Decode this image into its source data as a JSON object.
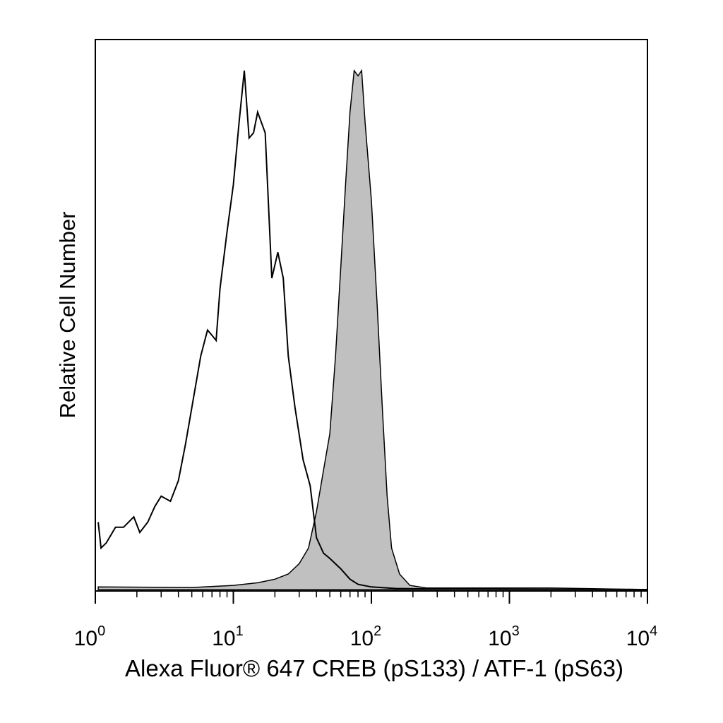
{
  "chart_data": {
    "type": "area",
    "title": "",
    "xlabel": "Alexa Fluor® 647 CREB (pS133) / ATF-1 (pS63)",
    "ylabel": "Relative Cell Number",
    "x_scale": "log",
    "xlim": [
      1,
      10000
    ],
    "ylim": [
      0,
      100
    ],
    "grid": false,
    "legend": "none",
    "x_ticks": [
      {
        "base": "10",
        "exp": "0",
        "value": 1
      },
      {
        "base": "10",
        "exp": "1",
        "value": 10
      },
      {
        "base": "10",
        "exp": "2",
        "value": 100
      },
      {
        "base": "10",
        "exp": "3",
        "value": 1000
      },
      {
        "base": "10",
        "exp": "4",
        "value": 10000
      }
    ],
    "series": [
      {
        "style": "outline",
        "color": "#000000",
        "points": [
          [
            1.05,
            13
          ],
          [
            1.1,
            8
          ],
          [
            1.2,
            9
          ],
          [
            1.4,
            12
          ],
          [
            1.6,
            12
          ],
          [
            1.9,
            14
          ],
          [
            2.1,
            11
          ],
          [
            2.4,
            13
          ],
          [
            2.7,
            16
          ],
          [
            3.0,
            18
          ],
          [
            3.5,
            17
          ],
          [
            4.0,
            21
          ],
          [
            4.5,
            28
          ],
          [
            5.0,
            35
          ],
          [
            5.8,
            45
          ],
          [
            6.5,
            50
          ],
          [
            7.0,
            49
          ],
          [
            7.5,
            48
          ],
          [
            8.0,
            58
          ],
          [
            9.0,
            69
          ],
          [
            10.0,
            78
          ],
          [
            11.0,
            90
          ],
          [
            12.0,
            100
          ],
          [
            13.0,
            87
          ],
          [
            14.0,
            88
          ],
          [
            15.0,
            92
          ],
          [
            17.0,
            88
          ],
          [
            19.0,
            60
          ],
          [
            21.0,
            65
          ],
          [
            23.0,
            60
          ],
          [
            25.0,
            45
          ],
          [
            28.0,
            35
          ],
          [
            32.0,
            25
          ],
          [
            36.0,
            20
          ],
          [
            40.0,
            10
          ],
          [
            45.0,
            7
          ],
          [
            50.0,
            6
          ],
          [
            60.0,
            4
          ],
          [
            70.0,
            2
          ],
          [
            80.0,
            1
          ],
          [
            100.0,
            0.5
          ],
          [
            150.0,
            0.2
          ],
          [
            300.0,
            0.1
          ],
          [
            10000.0,
            0
          ]
        ]
      },
      {
        "style": "filled",
        "color": "#c0c0c0",
        "points": [
          [
            1.05,
            0.5
          ],
          [
            5.0,
            0.4
          ],
          [
            10.0,
            0.8
          ],
          [
            15.0,
            1.3
          ],
          [
            20.0,
            2
          ],
          [
            25.0,
            3
          ],
          [
            30.0,
            5
          ],
          [
            35.0,
            8
          ],
          [
            40.0,
            15
          ],
          [
            45.0,
            23
          ],
          [
            50.0,
            30
          ],
          [
            55.0,
            45
          ],
          [
            60.0,
            62
          ],
          [
            65.0,
            78
          ],
          [
            70.0,
            92
          ],
          [
            75.0,
            100
          ],
          [
            80.0,
            99
          ],
          [
            85.0,
            100
          ],
          [
            90.0,
            90
          ],
          [
            100.0,
            75
          ],
          [
            110.0,
            55
          ],
          [
            120.0,
            35
          ],
          [
            130.0,
            18
          ],
          [
            140.0,
            8
          ],
          [
            160.0,
            3
          ],
          [
            190.0,
            0.8
          ],
          [
            250.0,
            0.3
          ],
          [
            1000.0,
            0.3
          ],
          [
            2000.0,
            0.3
          ],
          [
            10000.0,
            0
          ]
        ]
      }
    ]
  }
}
